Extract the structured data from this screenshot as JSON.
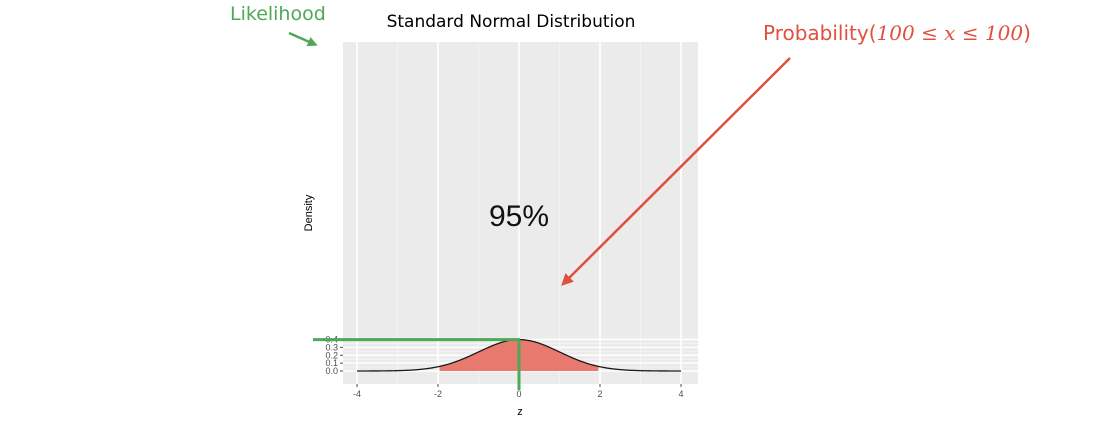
{
  "chart_data": {
    "type": "area",
    "title": "Standard Normal Distribution",
    "xlabel": "z",
    "ylabel": "Density",
    "xlim": [
      -4,
      4
    ],
    "ylim": [
      0,
      0.4
    ],
    "x_ticks": [
      -4,
      -2,
      0,
      2,
      4
    ],
    "y_ticks": [
      0.0,
      0.1,
      0.2,
      0.3,
      0.4
    ],
    "y_tick_labels": [
      "0.0",
      "0.1",
      "0.2",
      "0.3",
      "0.4"
    ],
    "series": [
      {
        "distribution": "normal",
        "mean": 0,
        "sd": 1,
        "color": "#000000"
      }
    ],
    "shaded_region": {
      "from": -1.96,
      "to": 1.96,
      "color": "#e8796f"
    },
    "center_label": "95%",
    "grid": true,
    "background": "#ebebeb"
  },
  "annotations": {
    "likelihood": {
      "text": "Likelihood",
      "color": "#4ea854",
      "at_x": 0,
      "at_y": 0.3989
    },
    "probability": {
      "prefix": "Probability(",
      "math": "100 ≤ x ≤ 100",
      "suffix": ")",
      "color": "#e0503f"
    }
  }
}
